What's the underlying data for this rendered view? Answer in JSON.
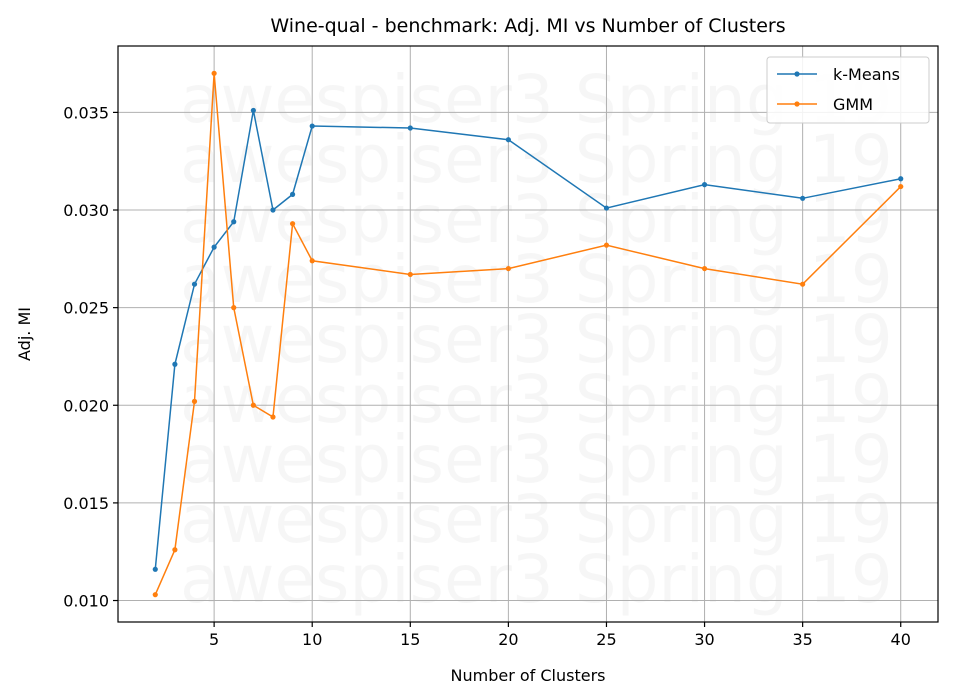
{
  "chart_data": {
    "type": "line",
    "title": "Wine-qual - benchmark: Adj. MI vs Number of Clusters",
    "xlabel": "Number of Clusters",
    "ylabel": "Adj. MI",
    "xlim": [
      0.1,
      41.9
    ],
    "ylim": [
      0.0089,
      0.0384
    ],
    "xticks": [
      5,
      10,
      15,
      20,
      25,
      30,
      35,
      40
    ],
    "yticks": [
      0.01,
      0.015,
      0.02,
      0.025,
      0.03,
      0.035
    ],
    "ytick_labels": [
      "0.010",
      "0.015",
      "0.020",
      "0.025",
      "0.030",
      "0.035"
    ],
    "grid": true,
    "legend_position": "top-right",
    "x": [
      2,
      3,
      4,
      5,
      6,
      7,
      8,
      9,
      10,
      15,
      20,
      25,
      30,
      35,
      40
    ],
    "series": [
      {
        "name": "k-Means",
        "color": "#1f77b4",
        "values": [
          0.0116,
          0.0221,
          0.0262,
          0.0281,
          0.0294,
          0.0351,
          0.03,
          0.0308,
          0.0343,
          0.0342,
          0.0336,
          0.0301,
          0.0313,
          0.0306,
          0.0316
        ]
      },
      {
        "name": "GMM",
        "color": "#ff7f0e",
        "values": [
          0.0103,
          0.0126,
          0.0202,
          0.037,
          0.025,
          0.02,
          0.0194,
          0.0293,
          0.0274,
          0.0267,
          0.027,
          0.0282,
          0.027,
          0.0262,
          0.0312
        ]
      }
    ],
    "watermark": "awespiser3 Spring 19"
  }
}
